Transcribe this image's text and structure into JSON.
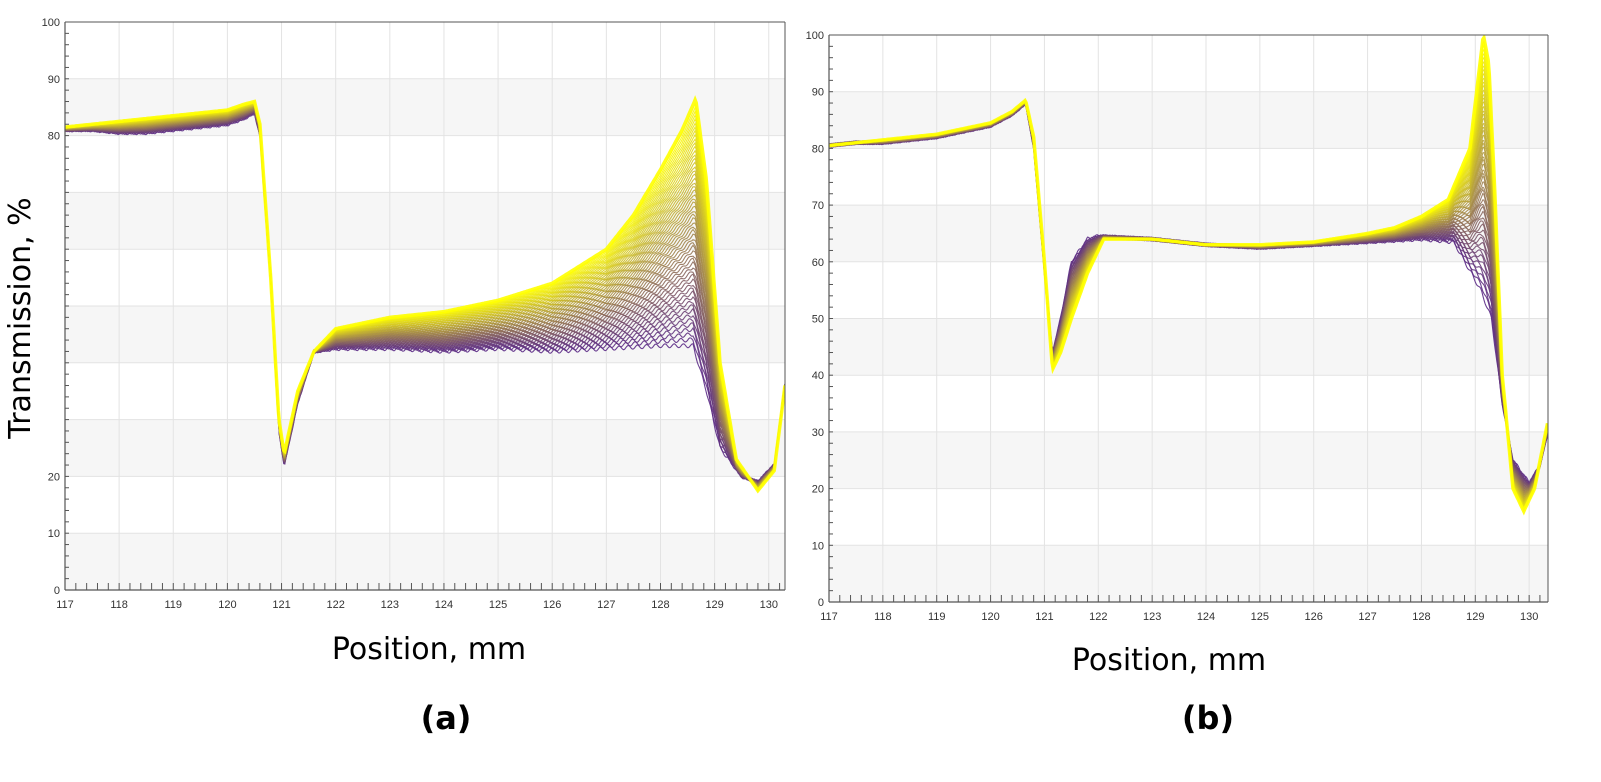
{
  "figure": {
    "ylabel": "Transmission, %",
    "colors": {
      "low": "#5b2a86",
      "high": "#ffff00",
      "band": "#f6f6f6",
      "grid": "#e3e3e3",
      "axis": "#555555"
    }
  },
  "chart_data": [
    {
      "type": "line",
      "panel_label": "(a)",
      "xlabel": "Position, mm",
      "ylabel": "Transmission, %",
      "xlim": [
        117,
        130.3
      ],
      "ylim": [
        0,
        100
      ],
      "x_ticks": [
        "117",
        "118",
        "119",
        "120",
        "121",
        "122",
        "123",
        "124",
        "125",
        "126",
        "127",
        "128",
        "129",
        "130"
      ],
      "y_ticks": [
        "0",
        "10",
        "20",
        "80",
        "90",
        "100"
      ],
      "grid": true,
      "series_count": 60,
      "series": [
        {
          "role": "first",
          "points": [
            [
              117,
              81
            ],
            [
              117.5,
              81
            ],
            [
              118,
              80.5
            ],
            [
              118.5,
              80.5
            ],
            [
              119,
              81
            ],
            [
              119.5,
              81.5
            ],
            [
              120,
              82
            ],
            [
              120.3,
              83
            ],
            [
              120.5,
              84
            ],
            [
              120.6,
              80
            ],
            [
              120.8,
              55
            ],
            [
              120.95,
              28
            ],
            [
              121.05,
              22
            ],
            [
              121.3,
              33
            ],
            [
              121.6,
              42
            ],
            [
              122,
              42.5
            ],
            [
              123,
              42.5
            ],
            [
              124,
              42
            ],
            [
              125,
              42.5
            ],
            [
              126,
              42
            ],
            [
              127,
              42.5
            ],
            [
              128,
              43
            ],
            [
              128.6,
              43
            ],
            [
              128.85,
              35
            ],
            [
              129.1,
              25
            ],
            [
              129.5,
              20
            ],
            [
              129.8,
              19
            ],
            [
              130.1,
              22
            ],
            [
              130.3,
              36
            ]
          ]
        },
        {
          "role": "last",
          "points": [
            [
              117,
              81.5
            ],
            [
              117.5,
              82
            ],
            [
              118,
              82.5
            ],
            [
              118.5,
              83
            ],
            [
              119,
              83.5
            ],
            [
              119.5,
              84
            ],
            [
              120,
              84.5
            ],
            [
              120.3,
              85.5
            ],
            [
              120.5,
              86
            ],
            [
              120.6,
              82
            ],
            [
              120.8,
              55
            ],
            [
              120.95,
              30
            ],
            [
              121.05,
              24
            ],
            [
              121.3,
              35
            ],
            [
              121.6,
              42
            ],
            [
              122,
              46
            ],
            [
              123,
              48
            ],
            [
              124,
              49
            ],
            [
              125,
              51
            ],
            [
              126,
              54
            ],
            [
              127,
              60
            ],
            [
              127.5,
              66
            ],
            [
              128,
              74
            ],
            [
              128.4,
              81
            ],
            [
              128.65,
              86.5
            ],
            [
              128.85,
              72
            ],
            [
              129.1,
              40
            ],
            [
              129.4,
              23
            ],
            [
              129.8,
              17.5
            ],
            [
              130.1,
              21
            ],
            [
              130.3,
              36
            ]
          ]
        }
      ]
    },
    {
      "type": "line",
      "panel_label": "(b)",
      "xlabel": "Position, mm",
      "ylabel": "",
      "xlim": [
        117,
        130.35
      ],
      "ylim": [
        0,
        100
      ],
      "x_ticks": [
        "117",
        "118",
        "119",
        "120",
        "121",
        "122",
        "123",
        "124",
        "125",
        "126",
        "127",
        "128",
        "129",
        "130"
      ],
      "y_ticks": [
        "0",
        "10",
        "20",
        "30",
        "40",
        "50",
        "60",
        "70",
        "80",
        "90",
        "100"
      ],
      "grid": true,
      "series_count": 60,
      "series": [
        {
          "role": "first",
          "points": [
            [
              117,
              80.5
            ],
            [
              117.5,
              81
            ],
            [
              118,
              81
            ],
            [
              118.5,
              81.5
            ],
            [
              119,
              82
            ],
            [
              119.5,
              83
            ],
            [
              120,
              84
            ],
            [
              120.4,
              86
            ],
            [
              120.65,
              88
            ],
            [
              120.8,
              80
            ],
            [
              121,
              58
            ],
            [
              121.15,
              44
            ],
            [
              121.3,
              50
            ],
            [
              121.5,
              60
            ],
            [
              121.8,
              64
            ],
            [
              122,
              64.5
            ],
            [
              123,
              64
            ],
            [
              124,
              63
            ],
            [
              125,
              62.5
            ],
            [
              126,
              63
            ],
            [
              127,
              63.5
            ],
            [
              128,
              64
            ],
            [
              128.6,
              63.5
            ],
            [
              129.1,
              55
            ],
            [
              129.3,
              50
            ],
            [
              129.5,
              35
            ],
            [
              129.7,
              25
            ],
            [
              130,
              21
            ],
            [
              130.2,
              24
            ],
            [
              130.35,
              30
            ]
          ]
        },
        {
          "role": "last",
          "points": [
            [
              117,
              80.5
            ],
            [
              117.5,
              81
            ],
            [
              118,
              81.5
            ],
            [
              118.5,
              82
            ],
            [
              119,
              82.5
            ],
            [
              119.5,
              83.5
            ],
            [
              120,
              84.5
            ],
            [
              120.4,
              86.5
            ],
            [
              120.65,
              88.5
            ],
            [
              120.8,
              82
            ],
            [
              121,
              60
            ],
            [
              121.15,
              41
            ],
            [
              121.3,
              44
            ],
            [
              121.5,
              50
            ],
            [
              121.8,
              58
            ],
            [
              122.1,
              64
            ],
            [
              123,
              64
            ],
            [
              124,
              63
            ],
            [
              125,
              63
            ],
            [
              126,
              63.5
            ],
            [
              127,
              65
            ],
            [
              127.5,
              66
            ],
            [
              128,
              68
            ],
            [
              128.5,
              71
            ],
            [
              128.9,
              80
            ],
            [
              129.05,
              92
            ],
            [
              129.15,
              100
            ],
            [
              129.25,
              95
            ],
            [
              129.35,
              75
            ],
            [
              129.5,
              40
            ],
            [
              129.7,
              20
            ],
            [
              129.9,
              16
            ],
            [
              130.1,
              20
            ],
            [
              130.35,
              32
            ]
          ]
        }
      ]
    }
  ]
}
